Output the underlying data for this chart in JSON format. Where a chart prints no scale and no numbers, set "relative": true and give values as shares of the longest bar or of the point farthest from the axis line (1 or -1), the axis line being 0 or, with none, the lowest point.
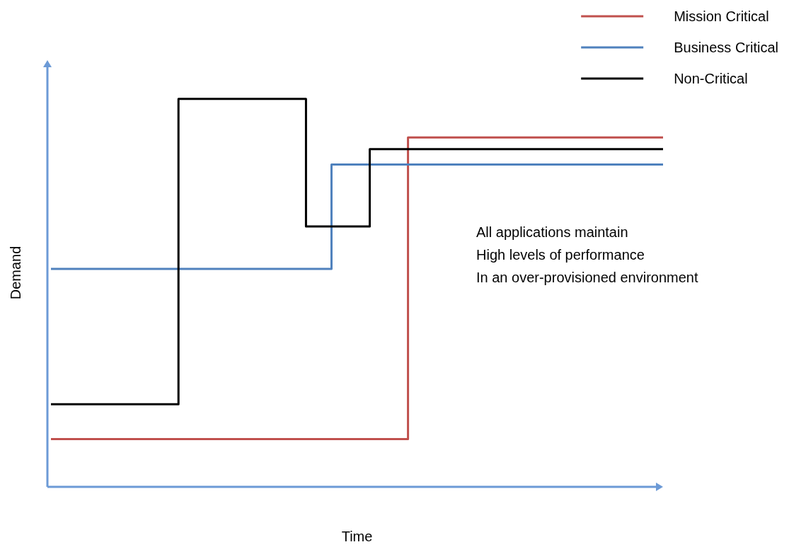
{
  "chart_data": {
    "type": "step",
    "relative": true,
    "xlabel": "Time",
    "ylabel": "Demand",
    "legend": "top right",
    "marker": "none",
    "line_style": "solid",
    "grid": false,
    "annotations": [
      "All applications maintain\nHigh levels of performance\nIn an over-provisioned environment"
    ],
    "categories": [
      null,
      null,
      null,
      null,
      null,
      null,
      null,
      null,
      null,
      null,
      null,
      null,
      null,
      null,
      null,
      null,
      null,
      null,
      null,
      null,
      null,
      null,
      null,
      null,
      null,
      null,
      null,
      null,
      null,
      null,
      null,
      null,
      null,
      null,
      null,
      null,
      null,
      null,
      null,
      null,
      null,
      null,
      null,
      null,
      null,
      null,
      null,
      null,
      null
    ],
    "series": [
      {
        "name": "Mission Critical",
        "color": "#c0504d",
        "values": [
          0.12,
          0.12,
          0.12,
          0.12,
          0.12,
          0.12,
          0.12,
          0.12,
          0.12,
          0.12,
          0.12,
          0.12,
          0.12,
          0.12,
          0.12,
          0.12,
          0.12,
          0.12,
          0.12,
          0.12,
          0.12,
          0.12,
          0.12,
          0.12,
          0.12,
          0.12,
          0.12,
          0.12,
          0.9,
          0.9,
          0.9,
          0.9,
          0.9,
          0.9,
          0.9,
          0.9,
          0.9,
          0.9,
          0.9,
          0.9,
          0.9,
          0.9,
          0.9,
          0.9,
          0.9,
          0.9,
          0.9,
          0.9,
          0.9
        ]
      },
      {
        "name": "Business Critical",
        "color": "#4f81bd",
        "values": [
          0.56,
          0.56,
          0.56,
          0.56,
          0.56,
          0.56,
          0.56,
          0.56,
          0.56,
          0.56,
          0.56,
          0.56,
          0.56,
          0.56,
          0.56,
          0.56,
          0.56,
          0.56,
          0.56,
          0.56,
          0.56,
          0.56,
          0.83,
          0.83,
          0.83,
          0.83,
          0.83,
          0.83,
          0.83,
          0.83,
          0.83,
          0.83,
          0.83,
          0.83,
          0.83,
          0.83,
          0.83,
          0.83,
          0.83,
          0.83,
          0.83,
          0.83,
          0.83,
          0.83,
          0.83,
          0.83,
          0.83,
          0.83,
          0.83
        ]
      },
      {
        "name": "Non-Critical",
        "color": "#000000",
        "values": [
          0.21,
          0.21,
          0.21,
          0.21,
          0.21,
          0.21,
          0.21,
          0.21,
          0.21,
          0.21,
          1,
          1,
          1,
          1,
          1,
          1,
          1,
          1,
          1,
          1,
          0.67,
          0.67,
          0.67,
          0.67,
          0.67,
          0.87,
          0.87,
          0.87,
          0.87,
          0.87,
          0.87,
          0.87,
          0.87,
          0.87,
          0.87,
          0.87,
          0.87,
          0.87,
          0.87,
          0.87,
          0.87,
          0.87,
          0.87,
          0.87,
          0.87,
          0.87,
          0.87,
          0.87,
          0.87
        ]
      }
    ]
  }
}
